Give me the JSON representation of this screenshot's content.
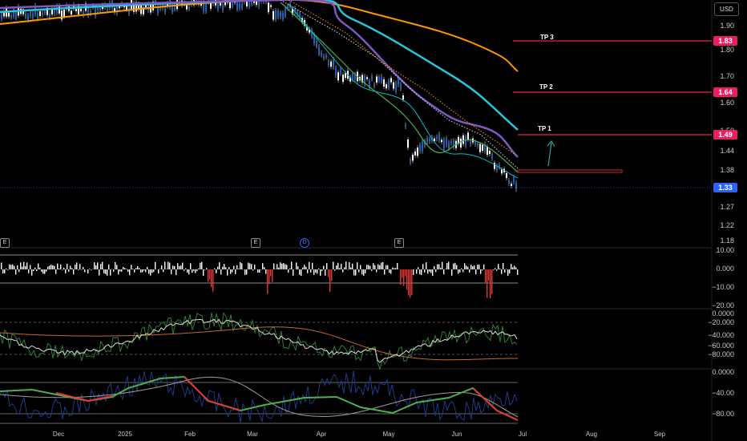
{
  "legend_text": "",
  "currency_button": "USD",
  "price_axis": [
    "1.90",
    "1.80",
    "1.70",
    "1.60",
    "1.50",
    "1.44",
    "1.38",
    "1.27",
    "1.22",
    "1.18"
  ],
  "price_tags": [
    {
      "label": "1.83",
      "color": "#e91e63"
    },
    {
      "label": "1.64",
      "color": "#e91e63"
    },
    {
      "label": "1.49",
      "color": "#e91e63"
    },
    {
      "label": "1.33",
      "color": "#2962ff"
    }
  ],
  "targets": [
    "TP 3",
    "TP 2",
    "TP 1"
  ],
  "osc1_axis": [
    "10.00",
    "0.000",
    "−10.00",
    "−20.00"
  ],
  "osc2_axis": [
    "0.0000",
    "−20.000",
    "−40.000",
    "−60.000",
    "−80.000"
  ],
  "osc3_axis": [
    "0.0000",
    "−40.00",
    "−80.00"
  ],
  "months": [
    "Dec",
    "2025",
    "Feb",
    "Mar",
    "Apr",
    "May",
    "Jun",
    "Jul",
    "Aug",
    "Sep"
  ],
  "events": [
    "E",
    "E",
    "D",
    "E"
  ],
  "colors": {
    "up": "#ffffff",
    "down": "#ffffff",
    "ma_orange": "#ff9800",
    "ma_cyan": "#26c6da",
    "ma_purple": "#7e57c2",
    "target": "#e91e63",
    "arrow": "#26a69a"
  }
}
